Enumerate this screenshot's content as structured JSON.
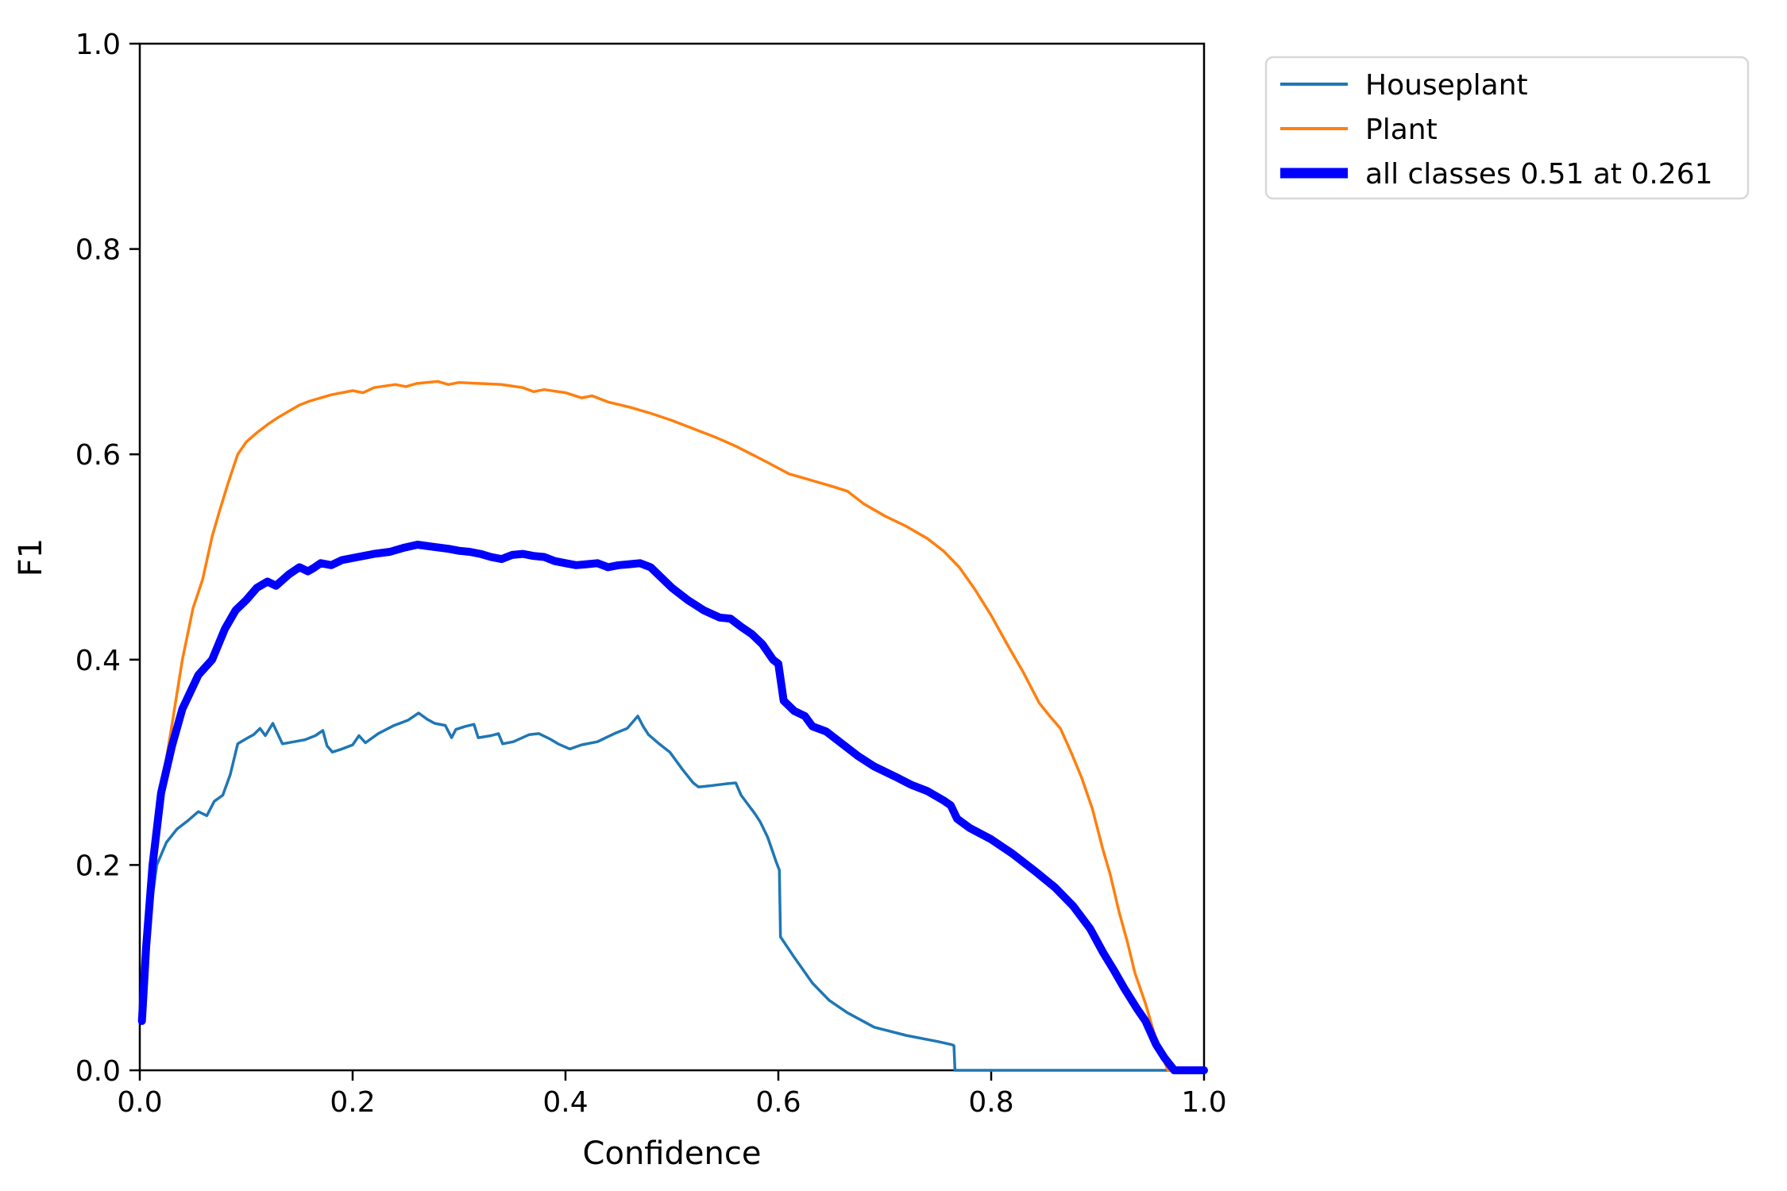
{
  "chart_data": {
    "type": "line",
    "title": "",
    "xlabel": "Confidence",
    "ylabel": "F1",
    "xlim": [
      0.0,
      1.0
    ],
    "ylim": [
      0.0,
      1.0
    ],
    "xticks": [
      "0.0",
      "0.2",
      "0.4",
      "0.6",
      "0.8",
      "1.0"
    ],
    "yticks": [
      "0.0",
      "0.2",
      "0.4",
      "0.6",
      "0.8",
      "1.0"
    ],
    "grid": false,
    "legend_position": "upper-right-outside",
    "annotation": "best F1 over all classes: 0.51 at confidence 0.261",
    "colors": {
      "spine": "#000000",
      "legend_border": "#d8d8d8",
      "background": "#ffffff"
    },
    "series": [
      {
        "name": "Houseplant",
        "color": "#1f77b4",
        "line_width": 3.5,
        "points": [
          [
            0.002,
            0.05
          ],
          [
            0.005,
            0.1
          ],
          [
            0.01,
            0.155
          ],
          [
            0.016,
            0.2
          ],
          [
            0.025,
            0.222
          ],
          [
            0.035,
            0.235
          ],
          [
            0.045,
            0.243
          ],
          [
            0.055,
            0.252
          ],
          [
            0.063,
            0.248
          ],
          [
            0.07,
            0.262
          ],
          [
            0.078,
            0.268
          ],
          [
            0.085,
            0.288
          ],
          [
            0.092,
            0.318
          ],
          [
            0.1,
            0.323
          ],
          [
            0.107,
            0.327
          ],
          [
            0.113,
            0.333
          ],
          [
            0.118,
            0.326
          ],
          [
            0.125,
            0.338
          ],
          [
            0.134,
            0.318
          ],
          [
            0.145,
            0.32
          ],
          [
            0.155,
            0.322
          ],
          [
            0.165,
            0.326
          ],
          [
            0.172,
            0.331
          ],
          [
            0.176,
            0.316
          ],
          [
            0.181,
            0.31
          ],
          [
            0.19,
            0.313
          ],
          [
            0.2,
            0.317
          ],
          [
            0.206,
            0.326
          ],
          [
            0.212,
            0.319
          ],
          [
            0.224,
            0.328
          ],
          [
            0.239,
            0.336
          ],
          [
            0.252,
            0.341
          ],
          [
            0.262,
            0.348
          ],
          [
            0.27,
            0.342
          ],
          [
            0.277,
            0.338
          ],
          [
            0.287,
            0.336
          ],
          [
            0.293,
            0.324
          ],
          [
            0.297,
            0.332
          ],
          [
            0.306,
            0.335
          ],
          [
            0.314,
            0.337
          ],
          [
            0.318,
            0.324
          ],
          [
            0.33,
            0.326
          ],
          [
            0.337,
            0.328
          ],
          [
            0.341,
            0.318
          ],
          [
            0.351,
            0.32
          ],
          [
            0.366,
            0.327
          ],
          [
            0.375,
            0.328
          ],
          [
            0.385,
            0.323
          ],
          [
            0.393,
            0.318
          ],
          [
            0.404,
            0.313
          ],
          [
            0.415,
            0.317
          ],
          [
            0.43,
            0.32
          ],
          [
            0.446,
            0.328
          ],
          [
            0.458,
            0.333
          ],
          [
            0.468,
            0.345
          ],
          [
            0.473,
            0.335
          ],
          [
            0.478,
            0.327
          ],
          [
            0.488,
            0.318
          ],
          [
            0.498,
            0.31
          ],
          [
            0.51,
            0.293
          ],
          [
            0.52,
            0.28
          ],
          [
            0.525,
            0.276
          ],
          [
            0.535,
            0.277
          ],
          [
            0.55,
            0.279
          ],
          [
            0.56,
            0.28
          ],
          [
            0.565,
            0.268
          ],
          [
            0.57,
            0.261
          ],
          [
            0.578,
            0.25
          ],
          [
            0.583,
            0.242
          ],
          [
            0.59,
            0.227
          ],
          [
            0.598,
            0.203
          ],
          [
            0.601,
            0.195
          ],
          [
            0.602,
            0.13
          ],
          [
            0.615,
            0.11
          ],
          [
            0.632,
            0.085
          ],
          [
            0.648,
            0.068
          ],
          [
            0.665,
            0.056
          ],
          [
            0.69,
            0.042
          ],
          [
            0.72,
            0.034
          ],
          [
            0.75,
            0.028
          ],
          [
            0.763,
            0.025
          ],
          [
            0.765,
            0.024
          ],
          [
            0.766,
            0.0
          ],
          [
            0.85,
            0.0
          ],
          [
            1.0,
            0.0
          ]
        ]
      },
      {
        "name": "Plant",
        "color": "#ff7f0e",
        "line_width": 3.5,
        "points": [
          [
            0.002,
            0.05
          ],
          [
            0.008,
            0.135
          ],
          [
            0.015,
            0.22
          ],
          [
            0.022,
            0.285
          ],
          [
            0.03,
            0.335
          ],
          [
            0.04,
            0.4
          ],
          [
            0.05,
            0.45
          ],
          [
            0.059,
            0.478
          ],
          [
            0.068,
            0.52
          ],
          [
            0.075,
            0.545
          ],
          [
            0.083,
            0.572
          ],
          [
            0.092,
            0.6
          ],
          [
            0.1,
            0.612
          ],
          [
            0.11,
            0.621
          ],
          [
            0.12,
            0.629
          ],
          [
            0.13,
            0.636
          ],
          [
            0.14,
            0.642
          ],
          [
            0.15,
            0.648
          ],
          [
            0.16,
            0.652
          ],
          [
            0.18,
            0.658
          ],
          [
            0.2,
            0.662
          ],
          [
            0.21,
            0.66
          ],
          [
            0.22,
            0.665
          ],
          [
            0.24,
            0.668
          ],
          [
            0.25,
            0.666
          ],
          [
            0.26,
            0.669
          ],
          [
            0.28,
            0.671
          ],
          [
            0.29,
            0.668
          ],
          [
            0.3,
            0.67
          ],
          [
            0.32,
            0.669
          ],
          [
            0.34,
            0.668
          ],
          [
            0.36,
            0.665
          ],
          [
            0.37,
            0.661
          ],
          [
            0.38,
            0.663
          ],
          [
            0.4,
            0.66
          ],
          [
            0.415,
            0.655
          ],
          [
            0.425,
            0.657
          ],
          [
            0.44,
            0.651
          ],
          [
            0.46,
            0.646
          ],
          [
            0.48,
            0.64
          ],
          [
            0.5,
            0.633
          ],
          [
            0.52,
            0.625
          ],
          [
            0.54,
            0.617
          ],
          [
            0.56,
            0.608
          ],
          [
            0.575,
            0.6
          ],
          [
            0.59,
            0.592
          ],
          [
            0.61,
            0.581
          ],
          [
            0.63,
            0.575
          ],
          [
            0.65,
            0.569
          ],
          [
            0.665,
            0.564
          ],
          [
            0.68,
            0.552
          ],
          [
            0.7,
            0.54
          ],
          [
            0.72,
            0.53
          ],
          [
            0.74,
            0.518
          ],
          [
            0.755,
            0.506
          ],
          [
            0.77,
            0.49
          ],
          [
            0.785,
            0.468
          ],
          [
            0.8,
            0.443
          ],
          [
            0.815,
            0.415
          ],
          [
            0.83,
            0.388
          ],
          [
            0.845,
            0.358
          ],
          [
            0.855,
            0.345
          ],
          [
            0.865,
            0.333
          ],
          [
            0.875,
            0.31
          ],
          [
            0.885,
            0.285
          ],
          [
            0.895,
            0.255
          ],
          [
            0.905,
            0.215
          ],
          [
            0.912,
            0.19
          ],
          [
            0.92,
            0.155
          ],
          [
            0.928,
            0.125
          ],
          [
            0.935,
            0.095
          ],
          [
            0.945,
            0.065
          ],
          [
            0.952,
            0.04
          ],
          [
            0.958,
            0.02
          ],
          [
            0.963,
            0.008
          ],
          [
            0.966,
            0.0
          ],
          [
            1.0,
            0.0
          ]
        ]
      },
      {
        "name": "all classes 0.51 at 0.261",
        "color": "#0000ff",
        "line_width": 10,
        "best_f1": 0.51,
        "best_confidence": 0.261,
        "points": [
          [
            0.002,
            0.048
          ],
          [
            0.006,
            0.12
          ],
          [
            0.012,
            0.2
          ],
          [
            0.02,
            0.27
          ],
          [
            0.03,
            0.315
          ],
          [
            0.04,
            0.352
          ],
          [
            0.055,
            0.385
          ],
          [
            0.068,
            0.4
          ],
          [
            0.08,
            0.43
          ],
          [
            0.09,
            0.448
          ],
          [
            0.1,
            0.458
          ],
          [
            0.11,
            0.47
          ],
          [
            0.12,
            0.476
          ],
          [
            0.128,
            0.472
          ],
          [
            0.14,
            0.483
          ],
          [
            0.15,
            0.49
          ],
          [
            0.158,
            0.486
          ],
          [
            0.163,
            0.489
          ],
          [
            0.17,
            0.494
          ],
          [
            0.18,
            0.492
          ],
          [
            0.19,
            0.497
          ],
          [
            0.205,
            0.5
          ],
          [
            0.22,
            0.503
          ],
          [
            0.235,
            0.505
          ],
          [
            0.248,
            0.509
          ],
          [
            0.261,
            0.512
          ],
          [
            0.275,
            0.51
          ],
          [
            0.29,
            0.508
          ],
          [
            0.3,
            0.506
          ],
          [
            0.31,
            0.505
          ],
          [
            0.32,
            0.503
          ],
          [
            0.33,
            0.5
          ],
          [
            0.34,
            0.498
          ],
          [
            0.35,
            0.502
          ],
          [
            0.36,
            0.503
          ],
          [
            0.37,
            0.501
          ],
          [
            0.38,
            0.5
          ],
          [
            0.39,
            0.496
          ],
          [
            0.4,
            0.494
          ],
          [
            0.41,
            0.492
          ],
          [
            0.42,
            0.493
          ],
          [
            0.43,
            0.494
          ],
          [
            0.44,
            0.49
          ],
          [
            0.45,
            0.492
          ],
          [
            0.46,
            0.493
          ],
          [
            0.47,
            0.494
          ],
          [
            0.48,
            0.49
          ],
          [
            0.487,
            0.483
          ],
          [
            0.5,
            0.47
          ],
          [
            0.515,
            0.458
          ],
          [
            0.53,
            0.448
          ],
          [
            0.545,
            0.441
          ],
          [
            0.555,
            0.44
          ],
          [
            0.565,
            0.432
          ],
          [
            0.575,
            0.425
          ],
          [
            0.585,
            0.415
          ],
          [
            0.595,
            0.4
          ],
          [
            0.6,
            0.396
          ],
          [
            0.605,
            0.36
          ],
          [
            0.615,
            0.35
          ],
          [
            0.625,
            0.345
          ],
          [
            0.632,
            0.335
          ],
          [
            0.645,
            0.33
          ],
          [
            0.66,
            0.318
          ],
          [
            0.675,
            0.306
          ],
          [
            0.69,
            0.296
          ],
          [
            0.71,
            0.286
          ],
          [
            0.725,
            0.278
          ],
          [
            0.74,
            0.272
          ],
          [
            0.755,
            0.263
          ],
          [
            0.762,
            0.258
          ],
          [
            0.768,
            0.245
          ],
          [
            0.78,
            0.236
          ],
          [
            0.8,
            0.225
          ],
          [
            0.82,
            0.211
          ],
          [
            0.84,
            0.195
          ],
          [
            0.86,
            0.178
          ],
          [
            0.877,
            0.16
          ],
          [
            0.893,
            0.138
          ],
          [
            0.905,
            0.115
          ],
          [
            0.915,
            0.098
          ],
          [
            0.925,
            0.08
          ],
          [
            0.937,
            0.06
          ],
          [
            0.945,
            0.048
          ],
          [
            0.955,
            0.025
          ],
          [
            0.963,
            0.012
          ],
          [
            0.972,
            0.0
          ],
          [
            1.0,
            0.0
          ]
        ]
      }
    ],
    "legend": [
      {
        "label": "Houseplant",
        "color": "#1f77b4",
        "sample_width": 4
      },
      {
        "label": "Plant",
        "color": "#ff7f0e",
        "sample_width": 4
      },
      {
        "label": "all classes 0.51 at 0.261",
        "color": "#0000ff",
        "sample_width": 13
      }
    ]
  }
}
